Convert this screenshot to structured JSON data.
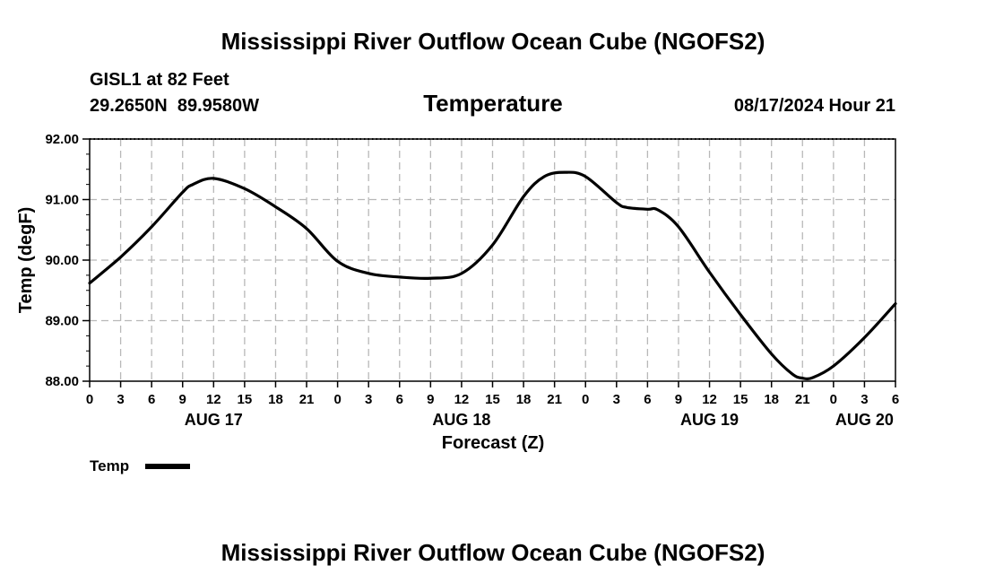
{
  "chart_data": {
    "type": "line",
    "title": "Mississippi River Outflow Ocean Cube (NGOFS2)",
    "footer_title": "Mississippi River Outflow Ocean Cube (NGOFS2)",
    "station": "GISL1 at 82 Feet",
    "location": "29.2650N  89.9580W",
    "chart_title": "Temperature",
    "datetime": "08/17/2024 Hour 21",
    "xlabel": "Forecast (Z)",
    "ylabel": "Temp (degF)",
    "ylim": [
      88.0,
      92.0
    ],
    "xlim_hours": [
      0,
      78
    ],
    "yticks": [
      "88.00",
      "89.00",
      "90.00",
      "91.00",
      "92.00"
    ],
    "xtick_labels": [
      "0",
      "3",
      "6",
      "9",
      "12",
      "15",
      "18",
      "21",
      "0",
      "3",
      "6",
      "9",
      "12",
      "15",
      "18",
      "21",
      "0",
      "3",
      "6",
      "9",
      "12",
      "15",
      "18",
      "21",
      "0",
      "3",
      "6"
    ],
    "day_labels": [
      {
        "label": "AUG 17",
        "hour": 12
      },
      {
        "label": "AUG 18",
        "hour": 36
      },
      {
        "label": "AUG 19",
        "hour": 60
      },
      {
        "label": "AUG 20",
        "hour": 75
      }
    ],
    "grid": true,
    "legend": "bottom-left",
    "series": [
      {
        "name": "Temp",
        "color": "#000000",
        "x": [
          0,
          3,
          6,
          9,
          10,
          12,
          15,
          18,
          21,
          24,
          27,
          30,
          33,
          36,
          39,
          42,
          44,
          46,
          48,
          51,
          52,
          54,
          55,
          57,
          60,
          63,
          66,
          68,
          69,
          70,
          72,
          75,
          78
        ],
        "values": [
          89.62,
          90.05,
          90.55,
          91.12,
          91.25,
          91.35,
          91.18,
          90.88,
          90.52,
          89.98,
          89.78,
          89.72,
          89.7,
          89.78,
          90.25,
          91.05,
          91.38,
          91.45,
          91.38,
          90.95,
          90.87,
          90.84,
          90.83,
          90.55,
          89.8,
          89.1,
          88.45,
          88.12,
          88.05,
          88.06,
          88.25,
          88.72,
          89.28
        ]
      }
    ]
  }
}
